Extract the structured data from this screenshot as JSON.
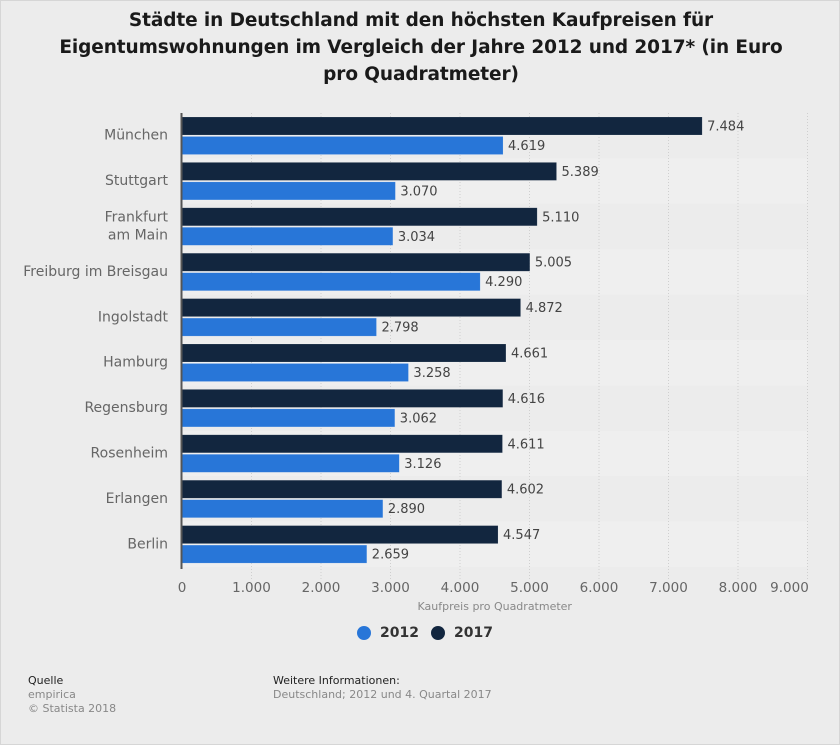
{
  "chart_data": {
    "type": "bar",
    "orientation": "horizontal",
    "title": "Städte in Deutschland mit den höchsten Kaufpreisen für Eigentumswohnungen im Vergleich der Jahre 2012 und 2017* (in Euro pro Quadratmeter)",
    "title_lines": [
      "Städte in Deutschland mit den höchsten Kaufpreisen für",
      "Eigentumswohnungen im Vergleich der Jahre 2012 und 2017* (in Euro",
      "pro Quadratmeter)"
    ],
    "categories": [
      "München",
      "Stuttgart",
      "Frankfurt am Main",
      "Freiburg im Breisgau",
      "Ingolstadt",
      "Hamburg",
      "Regensburg",
      "Rosenheim",
      "Erlangen",
      "Berlin"
    ],
    "category_lines": [
      [
        "München"
      ],
      [
        "Stuttgart"
      ],
      [
        "Frankfurt",
        "am Main"
      ],
      [
        "Freiburg im Breisgau"
      ],
      [
        "Ingolstadt"
      ],
      [
        "Hamburg"
      ],
      [
        "Regensburg"
      ],
      [
        "Rosenheim"
      ],
      [
        "Erlangen"
      ],
      [
        "Berlin"
      ]
    ],
    "series": [
      {
        "name": "2017",
        "color": "#12263f",
        "values": [
          7484,
          5389,
          5110,
          5005,
          4872,
          4661,
          4616,
          4611,
          4602,
          4547
        ],
        "labels": [
          "7.484",
          "5.389",
          "5.110",
          "5.005",
          "4.872",
          "4.661",
          "4.616",
          "4.611",
          "4.602",
          "4.547"
        ]
      },
      {
        "name": "2012",
        "color": "#2876d8",
        "values": [
          4619,
          3070,
          3034,
          4290,
          2798,
          3258,
          3062,
          3126,
          2890,
          2659
        ],
        "labels": [
          "4.619",
          "3.070",
          "3.034",
          "4.290",
          "2.798",
          "3.258",
          "3.062",
          "3.126",
          "2.890",
          "2.659"
        ]
      }
    ],
    "xlabel": "Kaufpreis pro Quadratmeter",
    "ylabel": "",
    "xlim": [
      0,
      9000
    ],
    "xticks": [
      0,
      1000,
      2000,
      3000,
      4000,
      5000,
      6000,
      7000,
      8000,
      9000
    ],
    "xtick_labels": [
      "0",
      "1.000",
      "2.000",
      "3.000",
      "4.000",
      "5.000",
      "6.000",
      "7.000",
      "8.000",
      "9.000"
    ],
    "grid": "vertical dotted",
    "legend": {
      "placement": "bottom-center",
      "entries": [
        {
          "label": "2012",
          "color": "#2876d8"
        },
        {
          "label": "2017",
          "color": "#12263f"
        }
      ]
    }
  },
  "footer": {
    "source_heading": "Quelle",
    "source_name": "empirica",
    "copyright": "© Statista 2018",
    "info_heading": "Weitere Informationen:",
    "info_text": "Deutschland; 2012 und 4. Quartal 2017"
  }
}
